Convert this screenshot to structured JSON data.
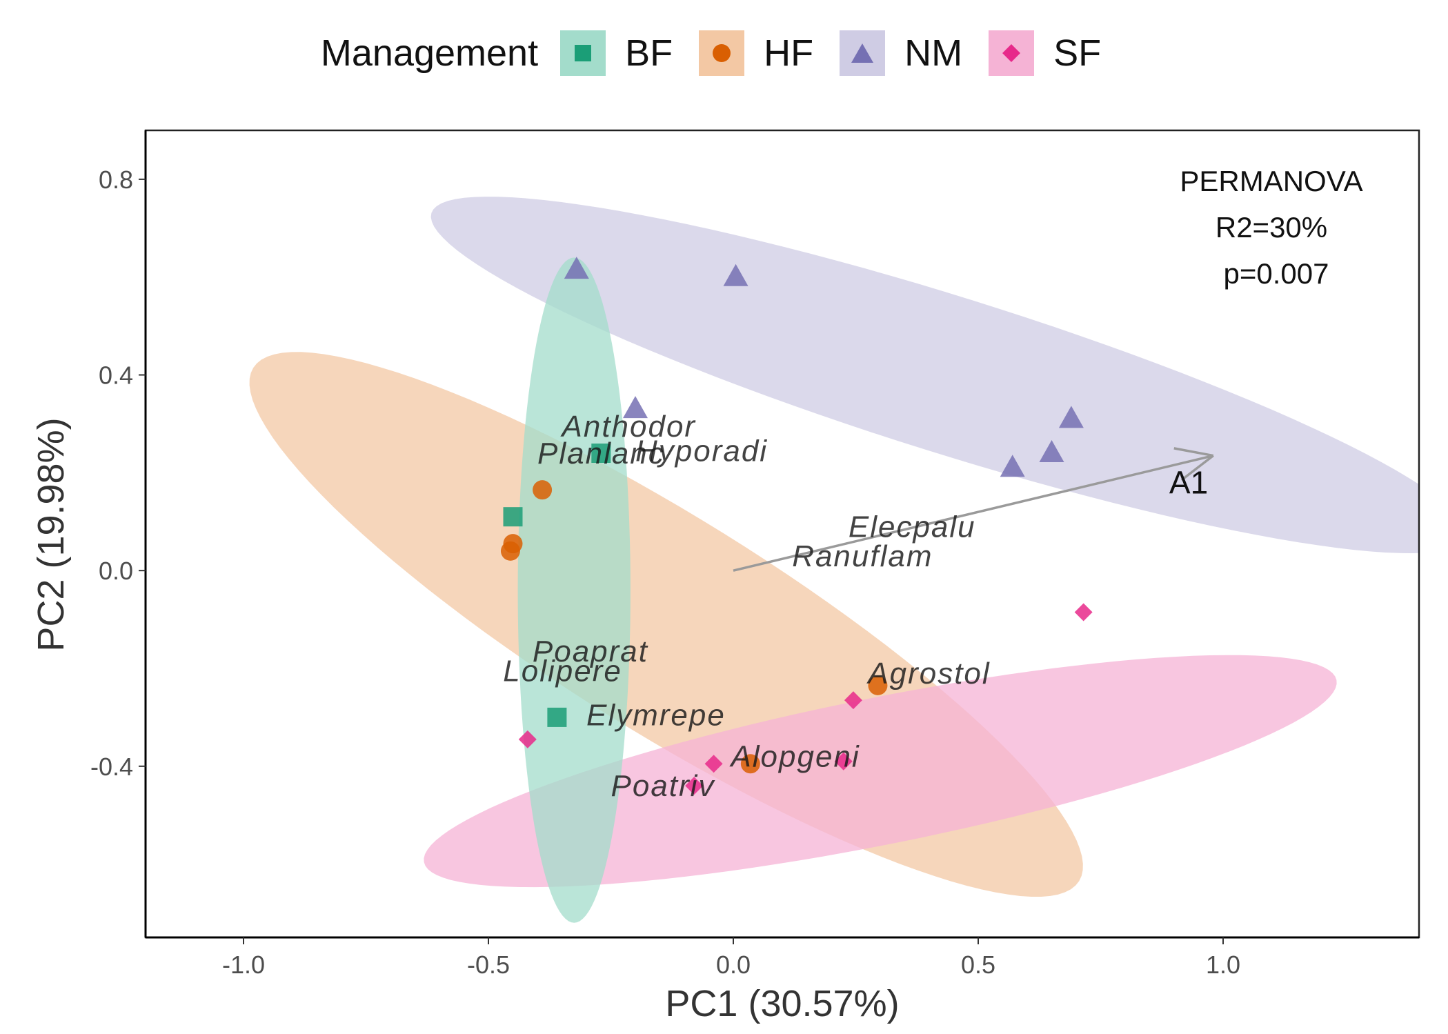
{
  "chart_data": {
    "type": "scatter",
    "legend": {
      "title": "Management",
      "position": "top",
      "entries": [
        {
          "label": "BF",
          "color": "#1b9e77",
          "fill": "#a3dccb",
          "shape": "square"
        },
        {
          "label": "HF",
          "color": "#d95f02",
          "fill": "#f3c8a4",
          "shape": "circle"
        },
        {
          "label": "NM",
          "color": "#7570b3",
          "fill": "#cfcce4",
          "shape": "triangle"
        },
        {
          "label": "SF",
          "color": "#e7298a",
          "fill": "#f5b3d5",
          "shape": "diamond"
        }
      ]
    },
    "xlabel": "PC1 (30.57%)",
    "ylabel": "PC2 (19.98%)",
    "xlim": [
      -1.2,
      1.4
    ],
    "ylim": [
      -0.75,
      0.9
    ],
    "xticks": [
      -1.0,
      -0.5,
      0.0,
      0.5,
      1.0
    ],
    "xtick_labels": [
      "-1.0",
      "-0.5",
      "0.0",
      "0.5",
      "1.0"
    ],
    "yticks": [
      -0.4,
      0.0,
      0.4,
      0.8
    ],
    "ytick_labels": [
      "-0.4",
      "0.0",
      "0.4",
      "0.8"
    ],
    "grid": false,
    "annotation": [
      "PERMANOVA",
      "R2=30%",
      "p=0.007"
    ],
    "series": [
      {
        "name": "BF",
        "points": [
          [
            -0.27,
            0.24
          ],
          [
            -0.45,
            0.11
          ],
          [
            -0.36,
            -0.3
          ]
        ]
      },
      {
        "name": "HF",
        "points": [
          [
            -0.39,
            0.165
          ],
          [
            -0.45,
            0.055
          ],
          [
            -0.455,
            0.04
          ],
          [
            0.295,
            -0.235
          ],
          [
            0.035,
            -0.395
          ]
        ]
      },
      {
        "name": "NM",
        "points": [
          [
            -0.32,
            0.615
          ],
          [
            0.005,
            0.6
          ],
          [
            -0.2,
            0.33
          ],
          [
            0.69,
            0.31
          ],
          [
            0.57,
            0.21
          ],
          [
            0.65,
            0.24
          ]
        ]
      },
      {
        "name": "SF",
        "points": [
          [
            0.715,
            -0.085
          ],
          [
            -0.42,
            -0.345
          ],
          [
            0.245,
            -0.265
          ],
          [
            -0.04,
            -0.395
          ],
          [
            0.225,
            -0.39
          ],
          [
            -0.08,
            -0.44
          ]
        ]
      }
    ],
    "ellipses": [
      {
        "group": "NM",
        "cx": 0.44,
        "cy": 0.4,
        "rx": 1.107,
        "ry": 0.16,
        "angle_deg": -17.4
      },
      {
        "group": "HF",
        "cx": -0.137,
        "cy": -0.11,
        "rx": 0.993,
        "ry": 0.22,
        "angle_deg": -31.9
      },
      {
        "group": "SF",
        "cx": 0.3,
        "cy": -0.41,
        "rx": 0.95,
        "ry": 0.15,
        "angle_deg": 11.3
      },
      {
        "group": "BF",
        "cx": -0.325,
        "cy": -0.04,
        "rx": 0.68,
        "ry": 0.115,
        "angle_deg": 90
      }
    ],
    "vector": {
      "label": "A1",
      "x0": 0.0,
      "y0": 0.0,
      "x1": 0.98,
      "y1": 0.235,
      "label_x": 0.89,
      "label_y": 0.18
    },
    "species": [
      {
        "name": "Anthodor",
        "x": -0.35,
        "y": 0.295
      },
      {
        "name": "Hyporadi",
        "x": -0.2,
        "y": 0.245
      },
      {
        "name": "Planlanc",
        "x": -0.4,
        "y": 0.24
      },
      {
        "name": "Elecpalu",
        "x": 0.235,
        "y": 0.09
      },
      {
        "name": "Ranuflam",
        "x": 0.12,
        "y": 0.03
      },
      {
        "name": "Poaprat",
        "x": -0.41,
        "y": -0.165
      },
      {
        "name": "Lolipere",
        "x": -0.47,
        "y": -0.205
      },
      {
        "name": "Agrostol",
        "x": 0.275,
        "y": -0.21
      },
      {
        "name": "Elymrepe",
        "x": -0.3,
        "y": -0.295
      },
      {
        "name": "Alopgeni",
        "x": -0.005,
        "y": -0.38
      },
      {
        "name": "Poatriv",
        "x": -0.25,
        "y": -0.44
      }
    ]
  }
}
